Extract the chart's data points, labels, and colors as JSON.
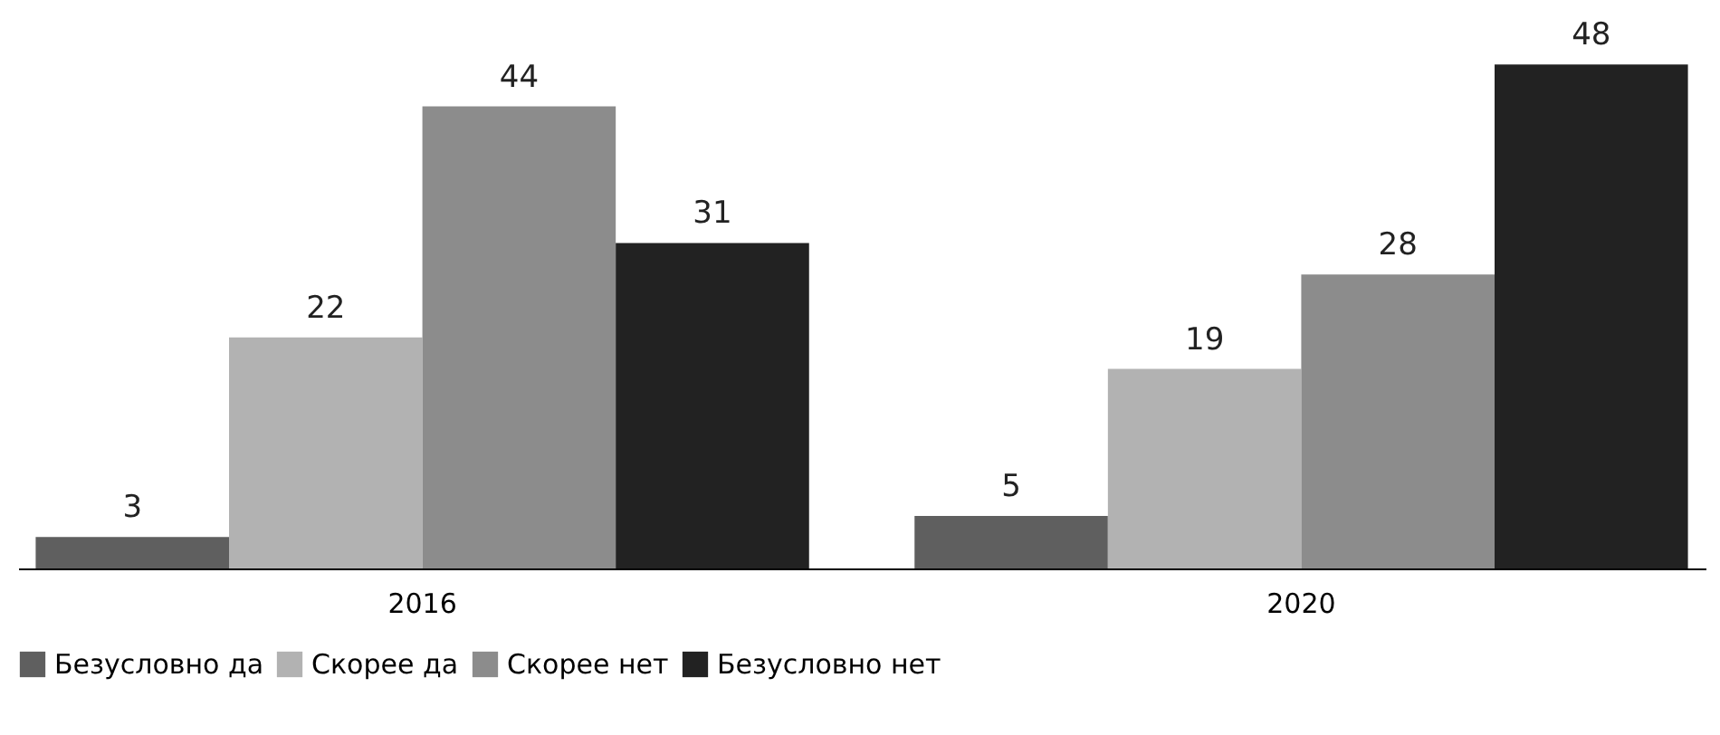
{
  "chart_data": {
    "type": "bar",
    "categories": [
      "2016",
      "2020"
    ],
    "series": [
      {
        "name": "Безусловно да",
        "color": "#5f5f5f",
        "values": [
          3,
          5
        ]
      },
      {
        "name": "Скорее да",
        "color": "#b2b2b2",
        "values": [
          22,
          19
        ]
      },
      {
        "name": "Скорее нет",
        "color": "#8c8c8c",
        "values": [
          44,
          28
        ]
      },
      {
        "name": "Безусловно нет",
        "color": "#222222",
        "values": [
          31,
          48
        ]
      }
    ],
    "data_labels": true,
    "legend": "bottom",
    "grid": false
  }
}
